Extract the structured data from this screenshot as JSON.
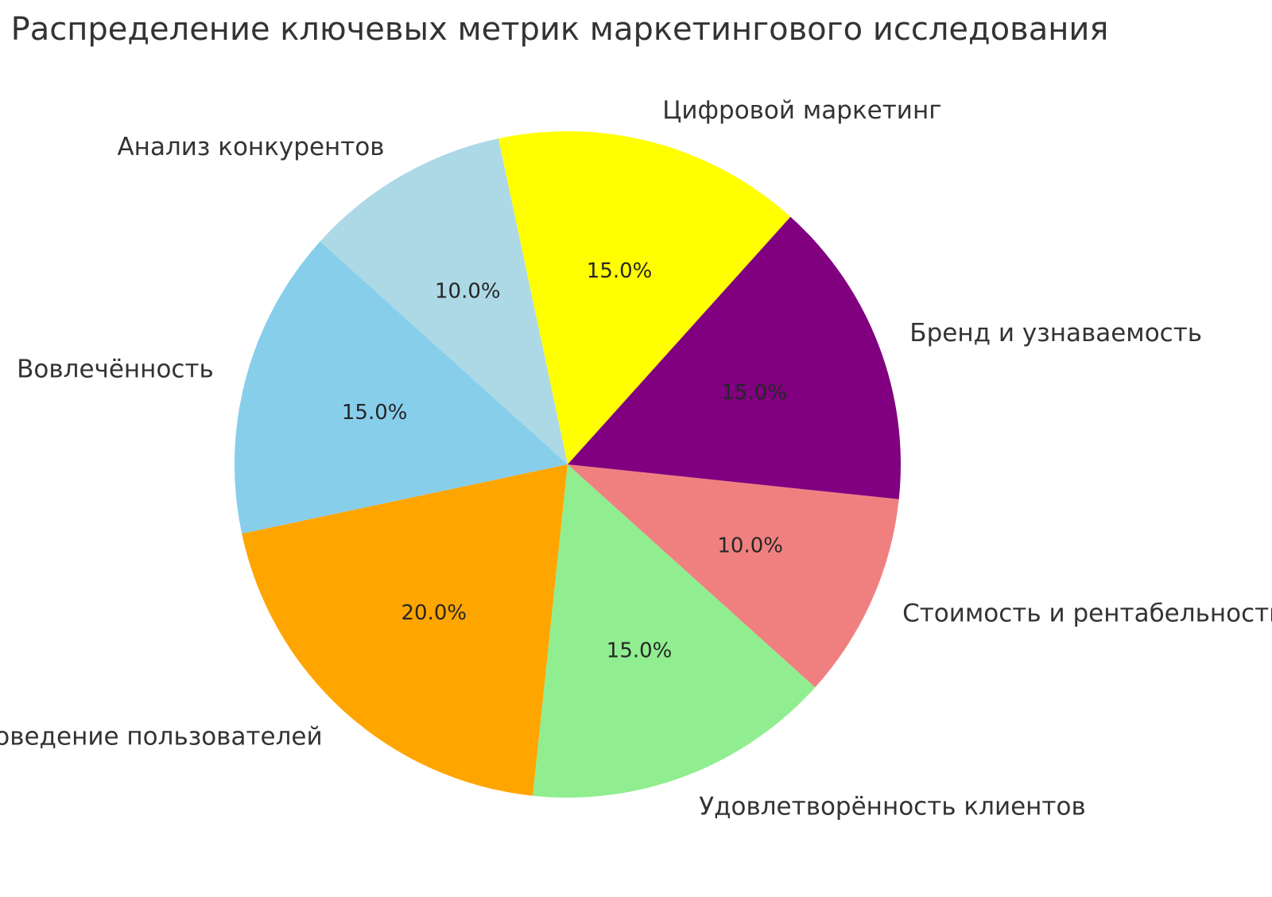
{
  "figure": {
    "background": "#ffffff"
  },
  "chart_data": {
    "type": "pie",
    "title": "Распределение ключевых метрик маркетингового исследования",
    "total": 100,
    "start_angle_deg": 48,
    "direction": "counterclockwise",
    "label_distance": 1.1,
    "pct_distance": 0.6,
    "legend": "none",
    "text_color": "#333333",
    "pct_color": "#262626",
    "slices": [
      {
        "label": "Цифровой маркетинг",
        "value": 15,
        "pct_label": "15.0%",
        "color": "#FFFF00"
      },
      {
        "label": "Анализ конкурентов",
        "value": 10,
        "pct_label": "10.0%",
        "color": "#ADD8E6"
      },
      {
        "label": "Вовлечённость",
        "value": 15,
        "pct_label": "15.0%",
        "color": "#87CEEB"
      },
      {
        "label": "Поведение пользователей",
        "value": 20,
        "pct_label": "20.0%",
        "color": "#FFA500"
      },
      {
        "label": "Удовлетворённость клиентов",
        "value": 15,
        "pct_label": "15.0%",
        "color": "#90EE90"
      },
      {
        "label": "Стоимость и рентабельность",
        "value": 10,
        "pct_label": "10.0%",
        "color": "#F08080"
      },
      {
        "label": "Бренд и узнаваемость",
        "value": 15,
        "pct_label": "15.0%",
        "color": "#800080"
      }
    ]
  }
}
